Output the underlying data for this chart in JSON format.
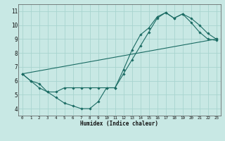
{
  "xlabel": "Humidex (Indice chaleur)",
  "bg_color": "#c8e8e4",
  "line_color": "#1a6b63",
  "grid_color": "#a8d4cf",
  "xlim": [
    -0.5,
    23.5
  ],
  "ylim": [
    3.5,
    11.5
  ],
  "xticks": [
    0,
    1,
    2,
    3,
    4,
    5,
    6,
    7,
    8,
    9,
    10,
    11,
    12,
    13,
    14,
    15,
    16,
    17,
    18,
    19,
    20,
    21,
    22,
    23
  ],
  "yticks": [
    4,
    5,
    6,
    7,
    8,
    9,
    10,
    11
  ],
  "series1_x": [
    0,
    1,
    2,
    3,
    4,
    5,
    6,
    7,
    8,
    9,
    10,
    11,
    12,
    13,
    14,
    15,
    16,
    17,
    18,
    19,
    20,
    21,
    22,
    23
  ],
  "series1_y": [
    6.5,
    6.0,
    5.5,
    5.2,
    4.8,
    4.4,
    4.2,
    4.0,
    4.0,
    4.5,
    5.5,
    5.5,
    6.8,
    8.2,
    9.3,
    9.8,
    10.6,
    10.9,
    10.5,
    10.8,
    10.2,
    9.5,
    9.0,
    8.9
  ],
  "series2_x": [
    0,
    1,
    2,
    3,
    4,
    5,
    6,
    7,
    8,
    9,
    10,
    11,
    12,
    13,
    14,
    15,
    16,
    17,
    18,
    19,
    20,
    21,
    22,
    23
  ],
  "series2_y": [
    6.5,
    6.0,
    5.8,
    5.2,
    5.2,
    5.5,
    5.5,
    5.5,
    5.5,
    5.5,
    5.5,
    5.5,
    6.5,
    7.5,
    8.5,
    9.5,
    10.5,
    10.9,
    10.5,
    10.8,
    10.5,
    10.0,
    9.4,
    9.0
  ],
  "series3_x": [
    0,
    23
  ],
  "series3_y": [
    6.5,
    9.0
  ]
}
